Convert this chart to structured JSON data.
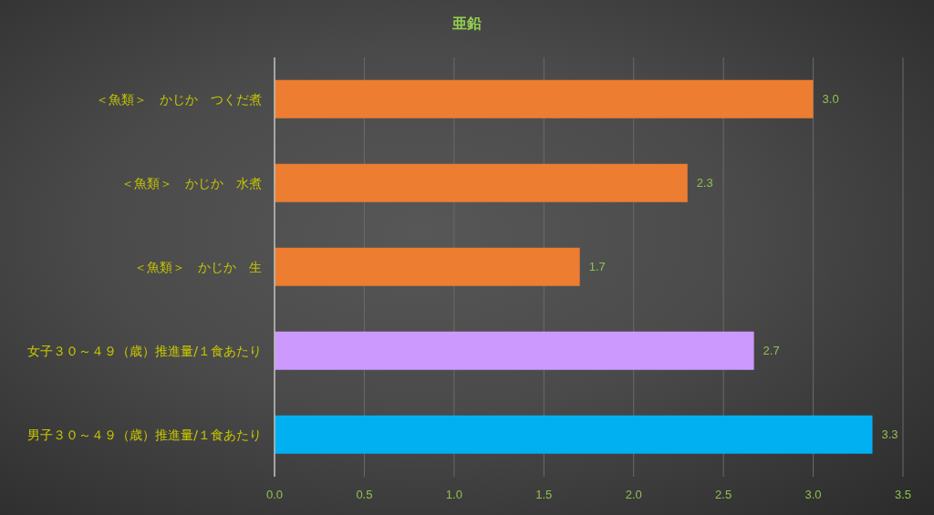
{
  "chart_data": {
    "type": "bar",
    "orientation": "horizontal",
    "title": "亜鉛",
    "categories": [
      "＜魚類＞　かじか　つくだ煮",
      "＜魚類＞　かじか　水煮",
      "＜魚類＞　かじか　生",
      "女子３０～４９（歳）推進量/１食あたり",
      "男子３０～４９（歳）推進量/１食あたり"
    ],
    "values": [
      3.0,
      2.3,
      1.7,
      2.67,
      3.33
    ],
    "value_labels": [
      "3.0",
      "2.3",
      "1.7",
      "2.7",
      "3.3"
    ],
    "colors": [
      "#ed7d31",
      "#ed7d31",
      "#ed7d31",
      "#cc99ff",
      "#00b0f0"
    ],
    "xlim": [
      0,
      3.5
    ],
    "xticks": [
      {
        "value": 0,
        "label": "0.0"
      },
      0.5,
      {
        "value": 1,
        "label": "1.0"
      },
      1.5,
      {
        "value": 2,
        "label": "2.0"
      },
      2.5,
      {
        "value": 3,
        "label": "3.0"
      },
      3.5
    ],
    "grid": "x"
  }
}
